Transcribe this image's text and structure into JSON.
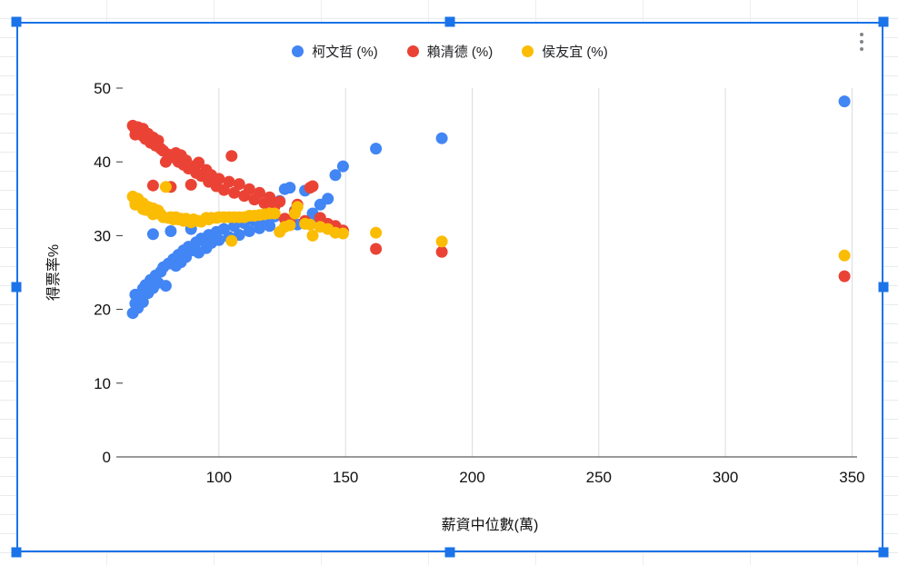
{
  "ui": {
    "selection_color": "#1a73e8",
    "icons": {
      "more_options_icon": "vertical-ellipsis"
    }
  },
  "chart_data": {
    "type": "scatter",
    "title": "",
    "xlabel": "薪資中位數(萬)",
    "ylabel": "得票率%",
    "xlim": [
      62,
      352
    ],
    "ylim": [
      0,
      50
    ],
    "x_ticks": [
      100,
      150,
      200,
      250,
      300,
      350
    ],
    "y_ticks": [
      0,
      10,
      20,
      30,
      40,
      50
    ],
    "grid": "vertical-only",
    "grid_color": "#dadce0",
    "legend_position": "top",
    "x": [
      66,
      67,
      67,
      68,
      69,
      70,
      70,
      71,
      72,
      73,
      74,
      74,
      75,
      76,
      77,
      78,
      79,
      80,
      81,
      82,
      83,
      84,
      85,
      86,
      87,
      88,
      89,
      90,
      91,
      92,
      93,
      95,
      96,
      97,
      99,
      100,
      102,
      104,
      105,
      106,
      108,
      110,
      112,
      114,
      116,
      118,
      120,
      122,
      124,
      126,
      128,
      130,
      131,
      134,
      136,
      137,
      140,
      143,
      146,
      149,
      162,
      188,
      347
    ],
    "series": [
      {
        "name": "柯文哲 (%)",
        "color": "#4285f4",
        "values": [
          19.5,
          20.8,
          22.0,
          20.2,
          21.5,
          22.8,
          21.0,
          23.3,
          22.2,
          24.0,
          22.9,
          30.2,
          24.6,
          23.6,
          25.1,
          25.7,
          23.2,
          26.2,
          30.6,
          26.8,
          25.9,
          27.4,
          26.4,
          28.0,
          27.1,
          28.5,
          30.9,
          28.0,
          29.1,
          27.7,
          29.6,
          28.3,
          30.1,
          29.0,
          30.5,
          29.4,
          30.9,
          29.8,
          29.5,
          31.3,
          30.1,
          31.7,
          30.6,
          32.0,
          31.0,
          32.3,
          31.3,
          32.6,
          34.7,
          36.3,
          36.5,
          33.4,
          31.5,
          36.1,
          31.8,
          33.0,
          34.2,
          35.0,
          38.2,
          39.4,
          41.8,
          43.2,
          48.2
        ]
      },
      {
        "name": "賴清德 (%)",
        "color": "#ea4335",
        "values": [
          44.9,
          44.4,
          43.7,
          44.7,
          44.1,
          43.5,
          44.5,
          43.1,
          43.8,
          42.6,
          43.3,
          36.8,
          42.2,
          42.9,
          41.8,
          41.5,
          40.0,
          41.0,
          36.6,
          40.6,
          41.2,
          40.0,
          40.9,
          39.6,
          40.2,
          39.1,
          36.9,
          39.4,
          38.5,
          39.9,
          38.1,
          38.9,
          37.3,
          38.2,
          36.7,
          37.7,
          36.2,
          37.3,
          40.8,
          35.8,
          37.0,
          35.4,
          36.3,
          34.9,
          35.8,
          34.4,
          35.2,
          34.0,
          34.6,
          32.3,
          31.9,
          33.3,
          34.2,
          32.0,
          36.5,
          36.7,
          32.4,
          31.6,
          31.3,
          30.7,
          28.2,
          27.8,
          24.5
        ]
      },
      {
        "name": "侯友宜 (%)",
        "color": "#fbbc04",
        "values": [
          35.3,
          34.6,
          34.2,
          35.0,
          34.3,
          33.6,
          34.4,
          33.5,
          33.9,
          33.3,
          33.7,
          32.9,
          33.1,
          33.4,
          32.9,
          32.5,
          36.6,
          32.4,
          32.5,
          32.2,
          32.5,
          32.2,
          32.3,
          32.0,
          32.3,
          32.0,
          31.8,
          32.2,
          32.0,
          32.0,
          31.9,
          32.4,
          32.2,
          32.4,
          32.4,
          32.5,
          32.5,
          32.5,
          29.3,
          32.5,
          32.5,
          32.5,
          32.7,
          32.7,
          32.8,
          32.9,
          33.0,
          33.0,
          30.5,
          31.2,
          31.4,
          33.0,
          33.9,
          31.6,
          31.5,
          30.0,
          31.2,
          30.9,
          30.4,
          30.3,
          30.4,
          29.2,
          27.3
        ]
      }
    ]
  }
}
